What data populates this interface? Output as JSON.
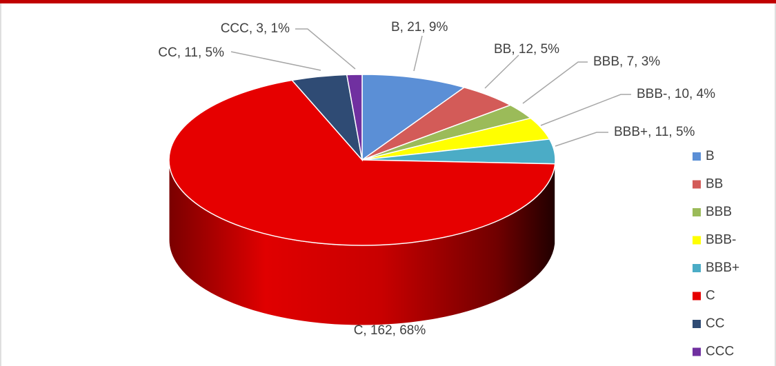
{
  "chart_data": {
    "type": "pie",
    "3d": true,
    "categories": [
      "B",
      "BB",
      "BBB",
      "BBB-",
      "BBB+",
      "C",
      "CC",
      "CCC"
    ],
    "values": [
      21,
      12,
      7,
      10,
      11,
      162,
      11,
      3
    ],
    "value_labels": [
      "B, 21, 9%",
      "BB, 12, 5%",
      "BBB, 7, 3%",
      "BBB-, 10, 4%",
      "BBB+, 11, 5%",
      "C, 162, 68%",
      "CC, 11, 5%",
      "CCC, 3, 1%"
    ],
    "colors": [
      "#5b8fd6",
      "#d35b58",
      "#9bbb59",
      "#ffff00",
      "#4bacc6",
      "#e60000",
      "#2f4b74",
      "#7030a0"
    ],
    "legend": "right"
  }
}
